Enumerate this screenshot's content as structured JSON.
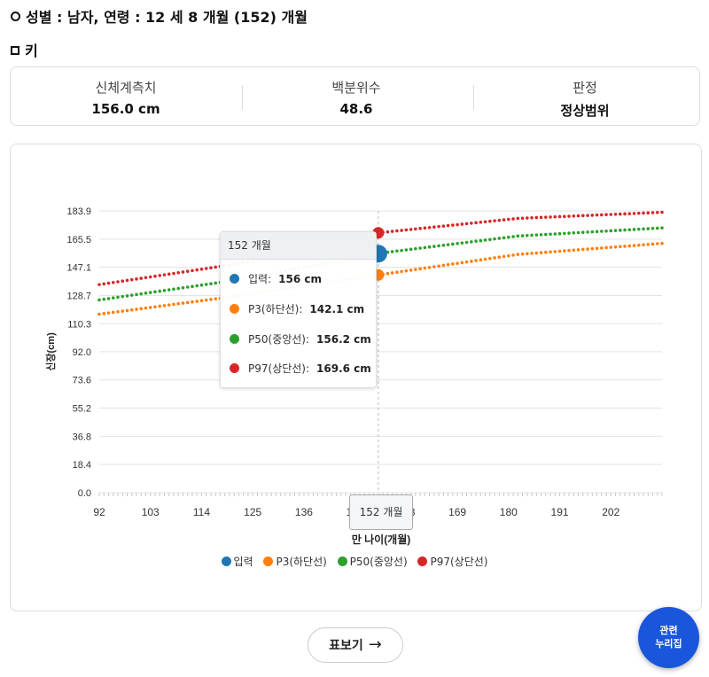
{
  "header": {
    "title": "성별 : 남자, 연령 : 12 세 8 개월 (152) 개월",
    "section": "키"
  },
  "stats": [
    {
      "label": "신체계측치",
      "value": "156.0 cm"
    },
    {
      "label": "백분위수",
      "value": "48.6"
    },
    {
      "label": "판정",
      "value": "정상범위"
    }
  ],
  "colors": {
    "input": "#1f77b4",
    "p3": "#ff7f0e",
    "p50": "#2ca02c",
    "p97": "#d62728"
  },
  "chart_data": {
    "type": "scatter",
    "xlabel": "만 나이(개월)",
    "ylabel": "신장(cm)",
    "x_ticks": [
      "92",
      "103",
      "114",
      "125",
      "136",
      "147",
      "158",
      "169",
      "180",
      "191",
      "202"
    ],
    "y_ticks": [
      "0.0",
      "18.4",
      "36.8",
      "55.2",
      "73.6",
      "92.0",
      "110.3",
      "128.7",
      "147.1",
      "165.5",
      "183.9"
    ],
    "xlim": [
      92,
      213
    ],
    "ylim": [
      0,
      183.9
    ],
    "grid": true,
    "legend_position": "bottom",
    "series": [
      {
        "name": "입력",
        "points": [
          [
            152,
            156
          ]
        ]
      },
      {
        "name": "P3(하단선)",
        "x": [
          92,
          122,
          152,
          182,
          213
        ],
        "values": [
          116.5,
          128.5,
          142.1,
          155.5,
          162.7
        ]
      },
      {
        "name": "P50(중앙선)",
        "x": [
          92,
          122,
          152,
          182,
          213
        ],
        "values": [
          125.8,
          139.0,
          156.2,
          167.5,
          172.8
        ]
      },
      {
        "name": "P97(상단선)",
        "x": [
          92,
          122,
          152,
          182,
          213
        ],
        "values": [
          135.8,
          149.5,
          169.6,
          179.0,
          183.0
        ]
      }
    ],
    "cursor_x": 152
  },
  "tooltip": {
    "title": "152 개월",
    "rows": [
      {
        "label": "입력:",
        "value": "156 cm"
      },
      {
        "label": "P3(하단선):",
        "value": "142.1 cm"
      },
      {
        "label": "P50(중앙선):",
        "value": "156.2 cm"
      },
      {
        "label": "P97(상단선):",
        "value": "169.6 cm"
      }
    ]
  },
  "x_tooltip": "152 개월",
  "legend": [
    "입력",
    "P3(하단선)",
    "P50(중앙선)",
    "P97(상단선)"
  ],
  "buttons": {
    "table": "표보기",
    "table_icon": "arrow-right-icon",
    "related_line1": "관련",
    "related_line2": "누리집"
  }
}
